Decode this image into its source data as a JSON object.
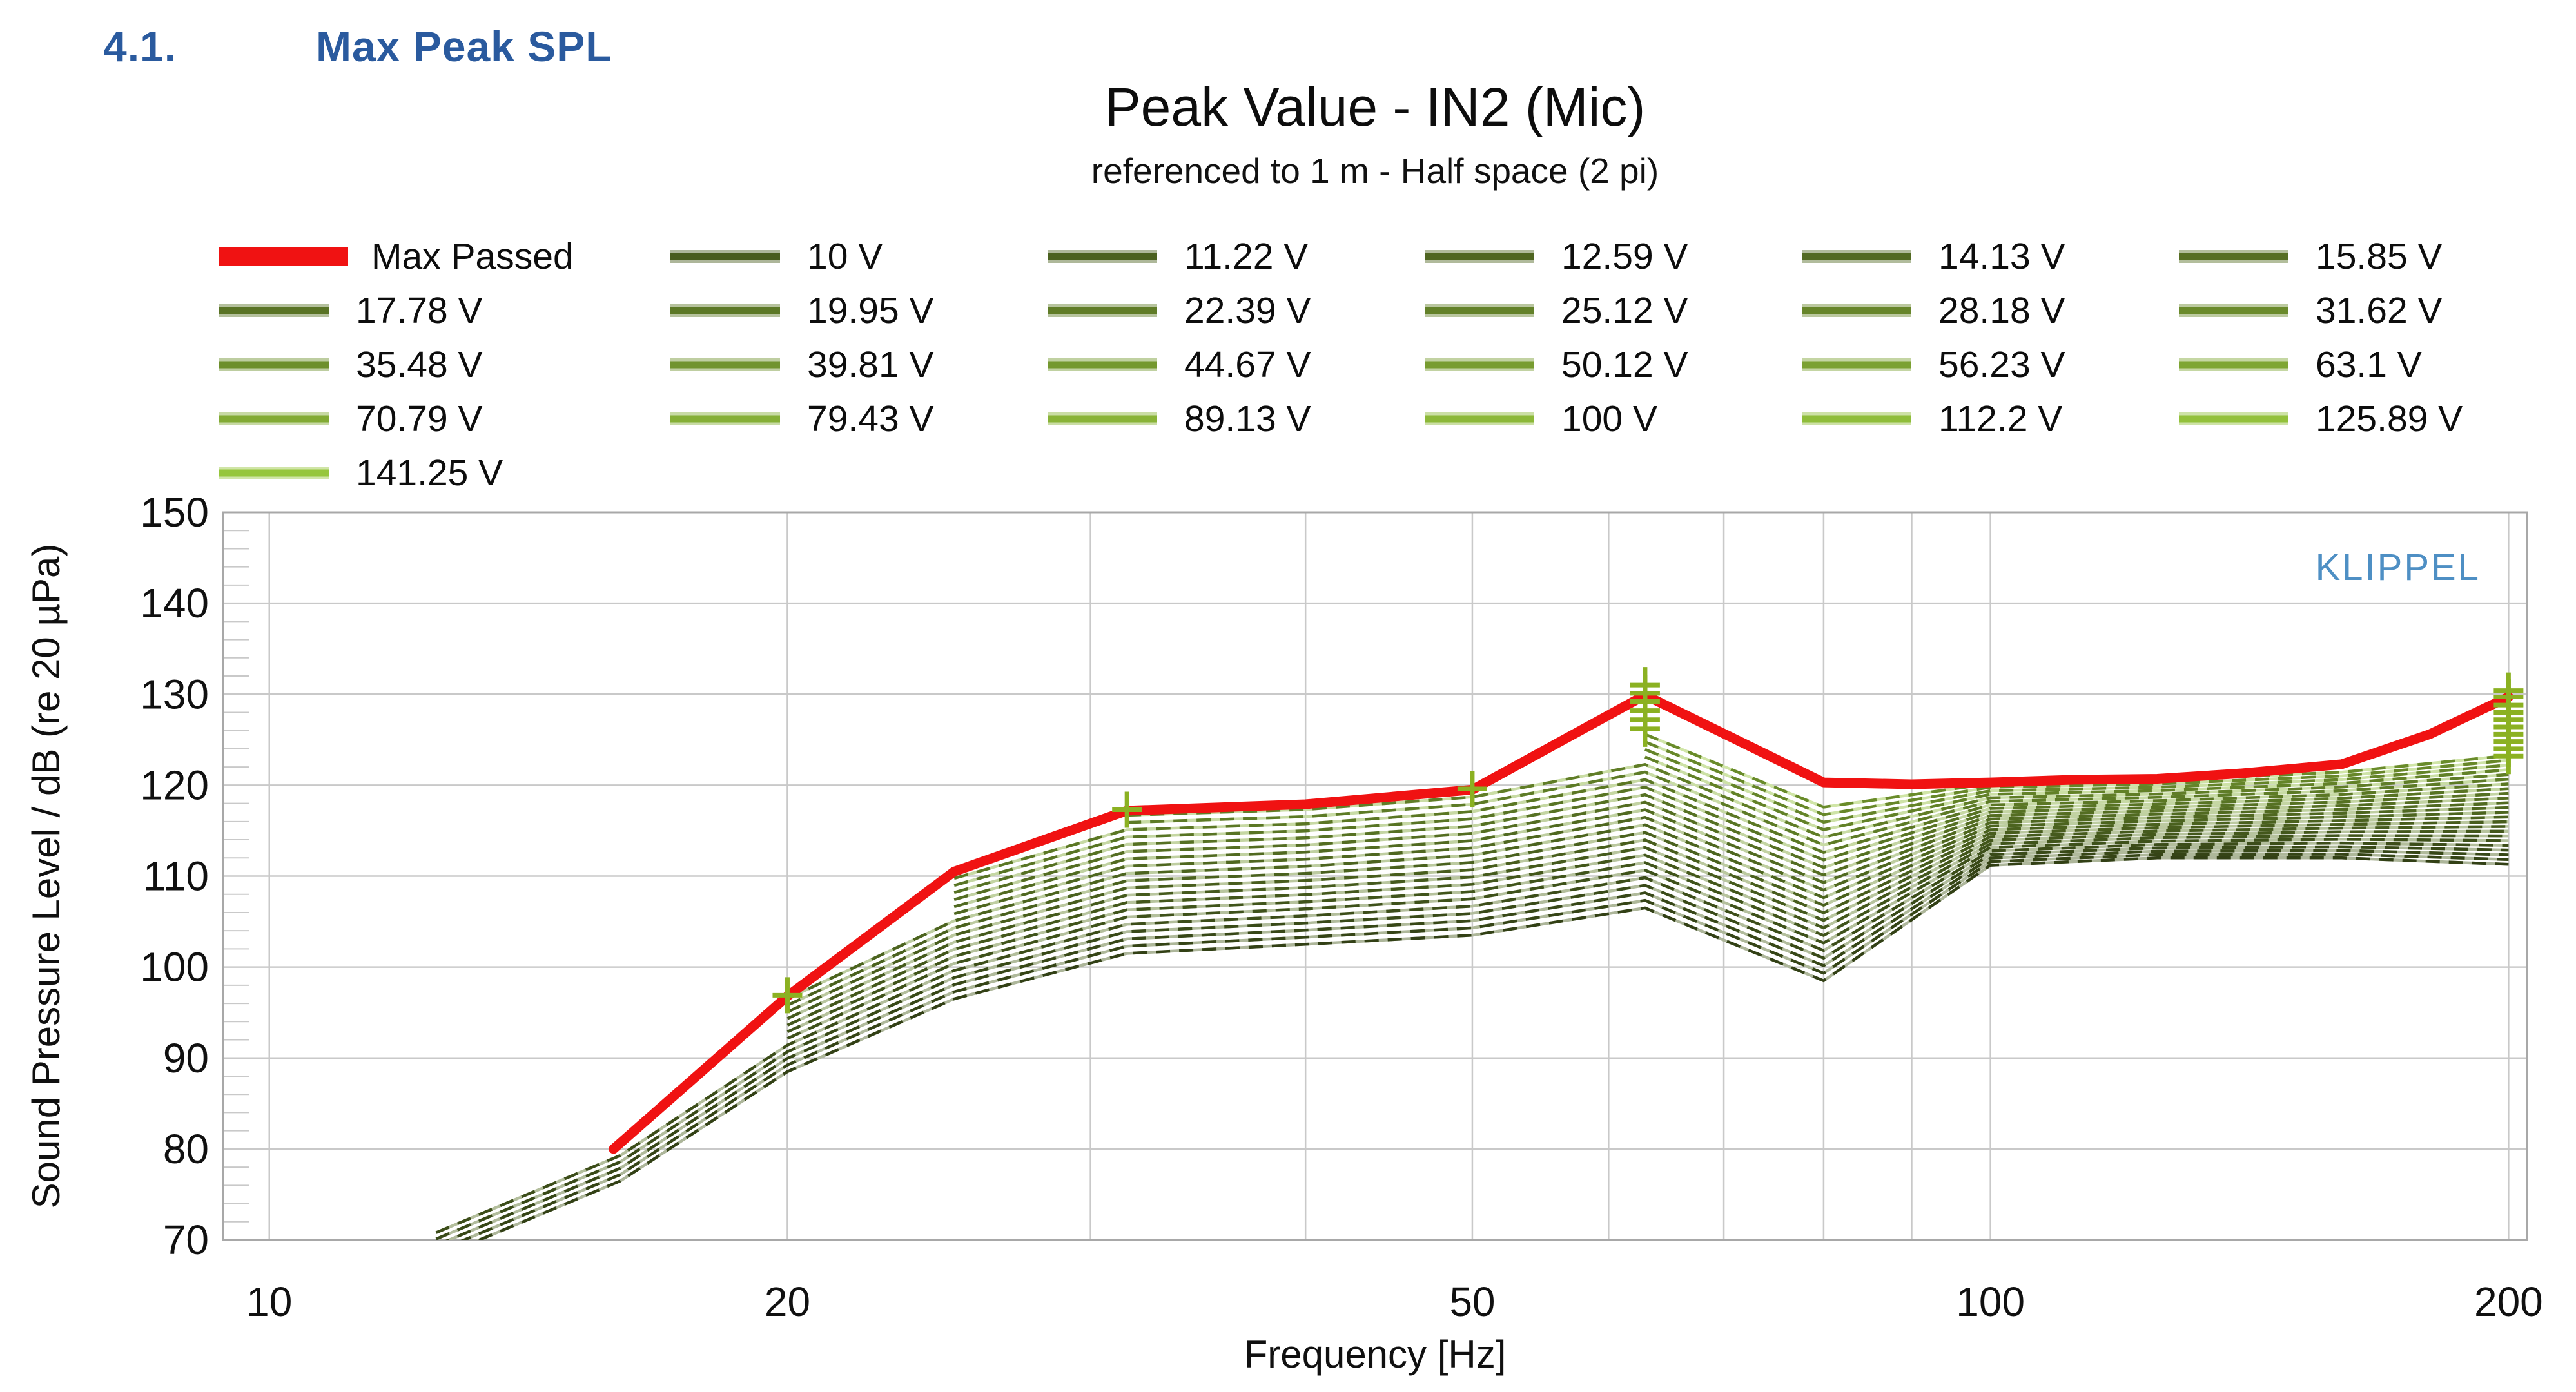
{
  "page": {
    "heading_number": "4.1.",
    "heading_title": "Max Peak SPL"
  },
  "chart": {
    "title": "Peak Value - IN2 (Mic)",
    "subtitle": "referenced to 1 m - Half space (2 pi)",
    "watermark": "KLIPPEL",
    "watermark_color": "#4e8fc4",
    "xlabel": "Frequency [Hz]",
    "ylabel": "Sound Pressure Level / dB (re 20 µPa)"
  },
  "legend": {
    "entries": [
      {
        "label": "Max Passed",
        "color": "#F01212"
      },
      {
        "label": "10 V",
        "color": "#485C1E"
      },
      {
        "label": "11.22 V",
        "color": "#4B611F"
      },
      {
        "label": "12.59 V",
        "color": "#4F6521"
      },
      {
        "label": "14.13 V",
        "color": "#526A22"
      },
      {
        "label": "15.85 V",
        "color": "#566E23"
      },
      {
        "label": "17.78 V",
        "color": "#597325"
      },
      {
        "label": "19.95 V",
        "color": "#5C7826"
      },
      {
        "label": "22.39 V",
        "color": "#607C27"
      },
      {
        "label": "25.12 V",
        "color": "#638129"
      },
      {
        "label": "28.18 V",
        "color": "#67852A"
      },
      {
        "label": "31.62 V",
        "color": "#6A8A2B"
      },
      {
        "label": "35.48 V",
        "color": "#6D8F2C"
      },
      {
        "label": "39.81 V",
        "color": "#71932E"
      },
      {
        "label": "44.67 V",
        "color": "#74982F"
      },
      {
        "label": "50.12 V",
        "color": "#789C30"
      },
      {
        "label": "56.23 V",
        "color": "#7BA132"
      },
      {
        "label": "63.1 V",
        "color": "#7EA633"
      },
      {
        "label": "70.79 V",
        "color": "#82AA34"
      },
      {
        "label": "79.43 V",
        "color": "#85AF36"
      },
      {
        "label": "89.13 V",
        "color": "#89B337"
      },
      {
        "label": "100 V",
        "color": "#8CB838"
      },
      {
        "label": "112.2 V",
        "color": "#8FBD3A"
      },
      {
        "label": "125.89 V",
        "color": "#93C13B"
      },
      {
        "label": "141.25 V",
        "color": "#96C63C"
      }
    ]
  },
  "chart_data": {
    "type": "line",
    "x_scale": "log",
    "title": "Peak Value - IN2 (Mic)",
    "subtitle": "referenced to 1 m - Half space (2 pi)",
    "xlabel": "Frequency [Hz]",
    "ylabel": "Sound Pressure Level / dB (re 20 µPa)",
    "xlim": [
      9.4,
      205
    ],
    "ylim": [
      70,
      150
    ],
    "x_tick_labels": [
      10,
      20,
      50,
      100,
      200
    ],
    "x_gridlines": [
      10,
      20,
      30,
      40,
      50,
      60,
      70,
      80,
      90,
      100,
      200
    ],
    "y_ticks": [
      70,
      80,
      90,
      100,
      110,
      120,
      130,
      140,
      150
    ],
    "y_minor_step": 2,
    "grid_color": "#c9c9c9",
    "border_color": "#a8a8a8",
    "marker_color": "#8bb122",
    "max_passed": {
      "label": "Max Passed",
      "color": "#F01212",
      "points": [
        [
          15.85,
          80
        ],
        [
          20,
          96.8
        ],
        [
          25,
          110.5
        ],
        [
          31.5,
          117.2
        ],
        [
          40,
          117.9
        ],
        [
          50,
          119.5
        ],
        [
          63,
          129.9
        ],
        [
          80,
          120.3
        ],
        [
          90,
          120.1
        ],
        [
          100,
          120.3
        ],
        [
          112,
          120.6
        ],
        [
          125,
          120.7
        ],
        [
          140,
          121.3
        ],
        [
          160,
          122.3
        ],
        [
          180,
          125.6
        ],
        [
          200,
          129.7
        ]
      ]
    },
    "voltage_series": {
      "voltages_v": [
        10,
        11.22,
        12.59,
        14.13,
        15.85,
        17.78,
        19.95,
        22.39,
        25.12,
        28.18,
        31.62,
        35.48,
        39.81,
        44.67,
        50.12,
        56.23,
        63.1,
        70.79,
        79.43,
        89.13,
        100,
        112.2,
        125.89,
        141.25
      ],
      "freqs_hz": [
        12.5,
        16,
        20,
        25,
        31.5,
        40,
        50,
        63,
        80,
        100,
        125,
        160,
        200
      ],
      "spl_10v": [
        68.0,
        76.5,
        88.5,
        96.5,
        101.5,
        102.5,
        103.5,
        106.5,
        98.5,
        111.2,
        112.0,
        112.0,
        111.3
      ],
      "db_gain_per_step": [
        0.7,
        0.7,
        0.73,
        0.78,
        0.8,
        0.78,
        0.8,
        0.83,
        0.83,
        0.39,
        0.37,
        0.41,
        0.52
      ],
      "pass_limit_spl": [
        71,
        80,
        96.8,
        110.5,
        117.2,
        117.9,
        119.5,
        null,
        null,
        null,
        null,
        null,
        null
      ],
      "note": "SPL(k,f)=spl_10v[f]+k*db_gain_per_step[f]; k = 1 dB voltage step index 0..23; curve drawn only where SPL is below the pass limit (low frequencies)."
    },
    "markers": {
      "20": [
        96.9
      ],
      "31.5": [
        117.3
      ],
      "50": [
        119.6
      ],
      "63": [
        126.2,
        127.2,
        128.2,
        129.2,
        130.1,
        131.0
      ],
      "200": [
        123.2,
        124.0,
        124.8,
        125.6,
        126.4,
        127.2,
        128.0,
        128.8,
        129.7,
        130.4
      ]
    }
  }
}
